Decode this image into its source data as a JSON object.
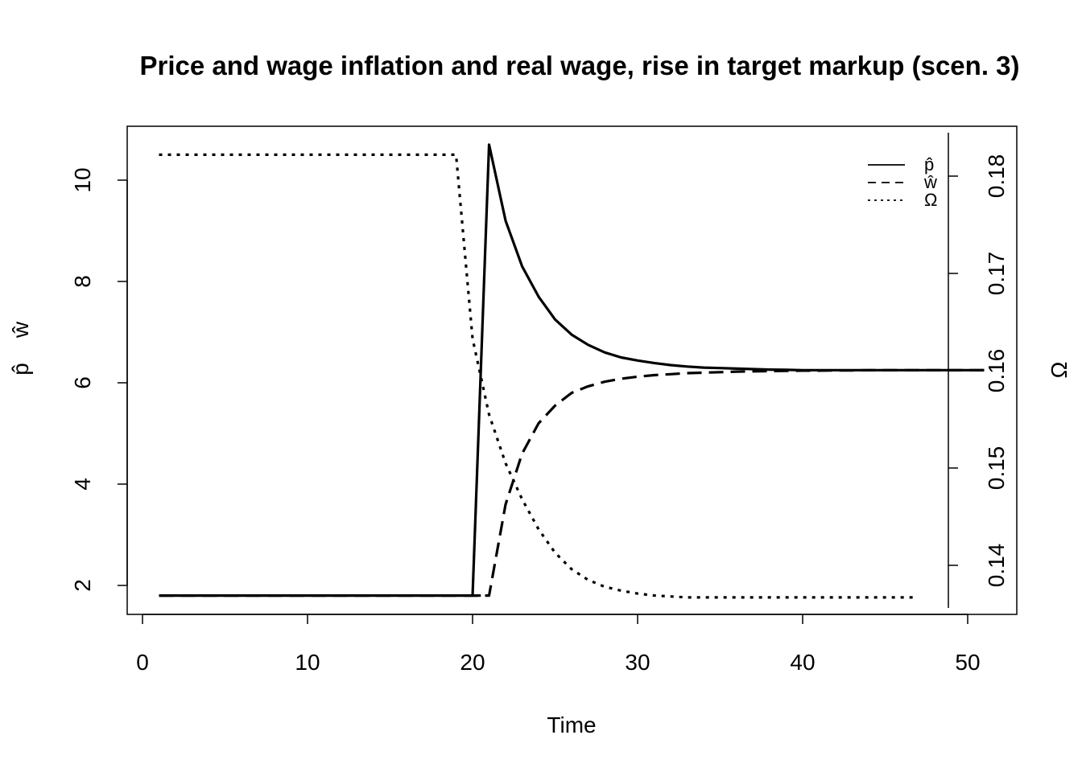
{
  "chart_data": {
    "type": "line",
    "title": "Price and wage inflation and real wage, rise in target markup (scen. 3)",
    "xlabel": "Time",
    "ylabel_left_p": "p̂",
    "ylabel_left_w": "ŵ",
    "ylabel_right": "Ω",
    "xlim": [
      0,
      52
    ],
    "ylim_left": [
      1.5,
      10.6
    ],
    "ylim_right": [
      0.1345,
      0.1835
    ],
    "xticks": [
      0,
      10,
      20,
      30,
      40,
      50
    ],
    "yticks_left": [
      2,
      4,
      6,
      8,
      10
    ],
    "yticks_right": [
      0.14,
      0.15,
      0.16,
      0.17,
      0.18
    ],
    "legend_position": "top-right",
    "grid": false,
    "series": [
      {
        "name": "p̂",
        "axis": "left",
        "dash": "solid",
        "x": [
          1,
          2,
          3,
          4,
          5,
          6,
          7,
          8,
          9,
          10,
          11,
          12,
          13,
          14,
          15,
          16,
          17,
          18,
          19,
          20,
          21,
          22,
          23,
          24,
          25,
          26,
          27,
          28,
          29,
          30,
          31,
          32,
          33,
          34,
          35,
          36,
          37,
          38,
          39,
          40,
          41,
          42,
          43,
          44,
          45,
          46,
          47,
          48,
          49,
          50,
          51
        ],
        "y": [
          1.8,
          1.8,
          1.8,
          1.8,
          1.8,
          1.8,
          1.8,
          1.8,
          1.8,
          1.8,
          1.8,
          1.8,
          1.8,
          1.8,
          1.8,
          1.8,
          1.8,
          1.8,
          1.8,
          1.8,
          10.7,
          9.2,
          8.3,
          7.7,
          7.25,
          6.95,
          6.75,
          6.6,
          6.5,
          6.44,
          6.39,
          6.35,
          6.32,
          6.3,
          6.29,
          6.28,
          6.27,
          6.26,
          6.255,
          6.25,
          6.25,
          6.25,
          6.25,
          6.25,
          6.25,
          6.25,
          6.25,
          6.25,
          6.25,
          6.25,
          6.25
        ]
      },
      {
        "name": "ŵ",
        "axis": "left",
        "dash": "dashed",
        "x": [
          1,
          2,
          3,
          4,
          5,
          6,
          7,
          8,
          9,
          10,
          11,
          12,
          13,
          14,
          15,
          16,
          17,
          18,
          19,
          20,
          21,
          22,
          23,
          24,
          25,
          26,
          27,
          28,
          29,
          30,
          31,
          32,
          33,
          34,
          35,
          36,
          37,
          38,
          39,
          40,
          41,
          42,
          43,
          44,
          45,
          46,
          47,
          48,
          49,
          50,
          51
        ],
        "y": [
          1.8,
          1.8,
          1.8,
          1.8,
          1.8,
          1.8,
          1.8,
          1.8,
          1.8,
          1.8,
          1.8,
          1.8,
          1.8,
          1.8,
          1.8,
          1.8,
          1.8,
          1.8,
          1.8,
          1.8,
          1.8,
          3.6,
          4.6,
          5.2,
          5.55,
          5.8,
          5.93,
          6.02,
          6.08,
          6.12,
          6.15,
          6.17,
          6.19,
          6.2,
          6.21,
          6.22,
          6.225,
          6.23,
          6.235,
          6.24,
          6.24,
          6.245,
          6.245,
          6.25,
          6.25,
          6.25,
          6.25,
          6.25,
          6.25,
          6.25,
          6.25
        ]
      },
      {
        "name": "Ω",
        "axis": "right",
        "dash": "dotted",
        "x": [
          1,
          2,
          3,
          4,
          5,
          6,
          7,
          8,
          9,
          10,
          11,
          12,
          13,
          14,
          15,
          16,
          17,
          18,
          19,
          20,
          21,
          22,
          23,
          24,
          25,
          26,
          27,
          28,
          29,
          30,
          31,
          32,
          33,
          34,
          35,
          36,
          37,
          38,
          39,
          40,
          41,
          42,
          43,
          44,
          45,
          46,
          47
        ],
        "y": [
          0.1822,
          0.1822,
          0.1822,
          0.1822,
          0.1822,
          0.1822,
          0.1822,
          0.1822,
          0.1822,
          0.1822,
          0.1822,
          0.1822,
          0.1822,
          0.1822,
          0.1822,
          0.1822,
          0.1822,
          0.1822,
          0.1822,
          0.1633,
          0.1555,
          0.1505,
          0.1468,
          0.1437,
          0.1413,
          0.1396,
          0.1385,
          0.1378,
          0.1374,
          0.1371,
          0.1369,
          0.1368,
          0.1367,
          0.1367,
          0.1367,
          0.1367,
          0.1367,
          0.1367,
          0.1367,
          0.1367,
          0.1367,
          0.1367,
          0.1367,
          0.1367,
          0.1367,
          0.1367,
          0.1367
        ]
      }
    ]
  }
}
